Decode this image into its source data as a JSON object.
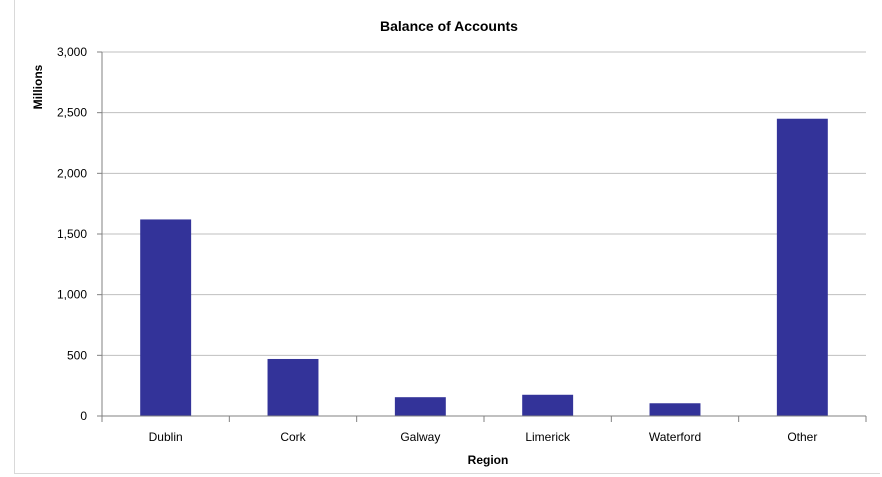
{
  "chart_data": {
    "type": "bar",
    "title": "Balance of Accounts",
    "xlabel": "Region",
    "ylabel": "Millions",
    "categories": [
      "Dublin",
      "Cork",
      "Galway",
      "Limerick",
      "Waterford",
      "Other"
    ],
    "values": [
      1620,
      470,
      155,
      175,
      105,
      2450
    ],
    "ylim": [
      0,
      3000
    ],
    "yticks": [
      0,
      500,
      1000,
      1500,
      2000,
      2500,
      3000
    ],
    "ytick_labels": [
      "0",
      "500",
      "1,000",
      "1,500",
      "2,000",
      "2,500",
      "3,000"
    ],
    "grid": true,
    "legend": "none",
    "bar_color": "#333399",
    "grid_color": "#bfbfbf",
    "axis_color": "#808080"
  }
}
